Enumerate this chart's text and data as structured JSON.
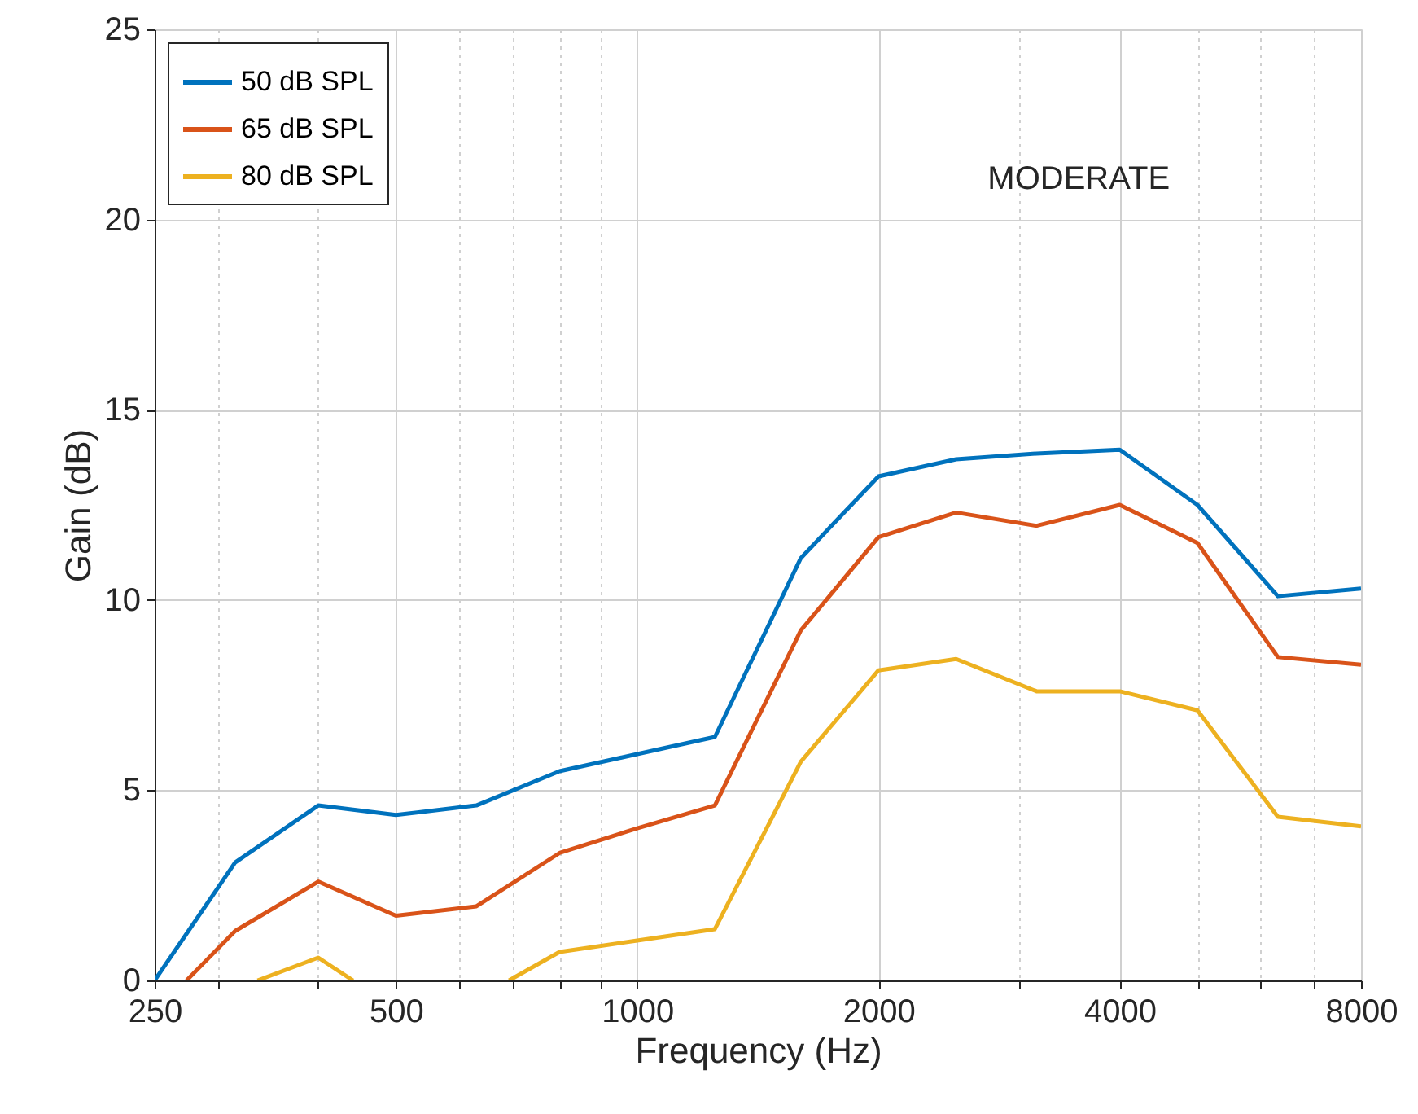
{
  "chart_data": {
    "type": "line",
    "xlabel": "Frequency (Hz)",
    "ylabel": "Gain (dB)",
    "annotations": [
      "MODERATE"
    ],
    "x": [
      250,
      315,
      400,
      500,
      630,
      800,
      1000,
      1250,
      1600,
      2000,
      2500,
      3150,
      4000,
      5000,
      6300,
      8000
    ],
    "series": [
      {
        "name": "50 dB SPL",
        "color": "#0072bd",
        "values": [
          0,
          3.1,
          4.6,
          4.35,
          4.6,
          5.5,
          5.95,
          6.4,
          11.1,
          13.25,
          13.7,
          13.85,
          13.95,
          12.5,
          10.1,
          10.3
        ]
      },
      {
        "name": "65 dB SPL",
        "color": "#d95319",
        "x": [
          274,
          315,
          400,
          500,
          630,
          800,
          1000,
          1250,
          1600,
          2000,
          2500,
          3150,
          4000,
          5000,
          6300,
          8000
        ],
        "values": [
          0,
          1.3,
          2.6,
          1.7,
          1.95,
          3.35,
          4.0,
          4.6,
          9.2,
          11.65,
          12.3,
          11.95,
          12.5,
          11.5,
          8.5,
          8.3
        ]
      },
      {
        "name": "80 dB SPL",
        "color": "#edb120",
        "x": [
          336,
          400,
          442,
          500,
          692,
          800,
          1000,
          1250,
          1600,
          2000,
          2500,
          3150,
          4000,
          5000,
          6300,
          8000
        ],
        "values": [
          0,
          0.6,
          0,
          null,
          0,
          0.75,
          1.05,
          1.35,
          5.75,
          8.15,
          8.45,
          7.6,
          7.6,
          7.1,
          4.3,
          4.05
        ]
      }
    ],
    "log": "x",
    "xlim": [
      250,
      8000
    ],
    "ylim": [
      0,
      25
    ],
    "xticks": [
      250,
      {
        "value": 300,
        "label": null
      },
      {
        "value": 400,
        "label": null
      },
      500,
      {
        "value": 600,
        "label": null
      },
      {
        "value": 700,
        "label": null
      },
      {
        "value": 800,
        "label": null
      },
      {
        "value": 900,
        "label": null
      },
      1000,
      2000,
      {
        "value": 3000,
        "label": null
      },
      4000,
      {
        "value": 5000,
        "label": null
      },
      {
        "value": 6000,
        "label": null
      },
      {
        "value": 7000,
        "label": null
      },
      8000
    ],
    "yticks": [
      0,
      5,
      10,
      15,
      20,
      25
    ],
    "grid": true,
    "legend": "top left",
    "marker": "none",
    "line_style": "solid"
  }
}
